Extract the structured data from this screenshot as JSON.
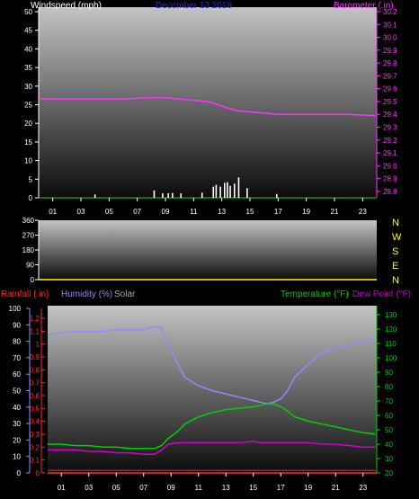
{
  "colors": {
    "background": "#000000",
    "axis": "#ffffff",
    "date": "#2a2acc",
    "barometer": "#ff33ff",
    "windspeed": "#ffffff",
    "winddir_axis": "#ffff00",
    "rainfall": "#ff2a2a",
    "humidity": "#8c8cff",
    "solar": "#aaaaaa",
    "temperature": "#00d000",
    "dewpoint": "#d000d0"
  },
  "header": {
    "windspeed_label": "Windspeed (mph)",
    "date": "December 13 2019",
    "barometer_label": "Barometer (.in)"
  },
  "lower_header": {
    "rainfall_label": "Rainfall (.in)",
    "humidity_label": "Humidity (%)",
    "solar_label": "Solar",
    "temperature_label": "Temperature (°F)",
    "dewpoint_label": "Dew Point (°F)"
  },
  "compass": [
    "N",
    "W",
    "S",
    "E",
    "N"
  ],
  "chart_data": [
    {
      "type": "line",
      "x": [
        0,
        2,
        4,
        6,
        8,
        9,
        10,
        12,
        14,
        16,
        17,
        18,
        20,
        22,
        23.9
      ],
      "series": [
        {
          "name": "Windspeed (mph)",
          "type": "bar",
          "x": [
            4,
            8.2,
            8.8,
            9.2,
            9.5,
            10.1,
            11.6,
            12.4,
            12.6,
            12.9,
            13.2,
            13.4,
            13.6,
            13.9,
            14.2,
            14.8,
            16.9
          ],
          "values": [
            0.9,
            2,
            1.2,
            1.2,
            1.3,
            1.2,
            1.4,
            3,
            3.5,
            3,
            4,
            4.2,
            3.2,
            3.8,
            5.5,
            2.6,
            1
          ]
        },
        {
          "name": "Barometer (.in)",
          "values": [
            29.52,
            29.52,
            29.52,
            29.52,
            29.53,
            29.53,
            29.52,
            29.5,
            29.43,
            29.41,
            29.4,
            29.4,
            29.4,
            29.4,
            29.39
          ]
        }
      ],
      "xticks": [
        "01",
        "03",
        "05",
        "07",
        "09",
        "11",
        "13",
        "15",
        "17",
        "19",
        "21",
        "23"
      ],
      "y_left": {
        "ticks": [
          "0",
          "5",
          "10",
          "15",
          "20",
          "25",
          "30",
          "35",
          "40",
          "45",
          "50"
        ],
        "range": [
          0,
          50
        ]
      },
      "y_right": {
        "ticks": [
          "28.8",
          "28.9",
          "29.0",
          "29.1",
          "29.2",
          "29.3",
          "29.4",
          "29.5",
          "29.6",
          "29.7",
          "29.8",
          "29.9",
          "30.0",
          "30.1",
          "30.2"
        ],
        "range": [
          28.75,
          30.2
        ]
      }
    },
    {
      "type": "scatter",
      "series": [
        {
          "name": "Wind Direction",
          "values": []
        }
      ],
      "y_left": {
        "ticks": [
          "0",
          "90",
          "180",
          "270",
          "360"
        ],
        "range": [
          0,
          360
        ]
      }
    },
    {
      "type": "line",
      "x": [
        0,
        1,
        2,
        3,
        4,
        5,
        6,
        7,
        7.8,
        8.3,
        8.8,
        9.5,
        10,
        11,
        12,
        13,
        14,
        15,
        15.5,
        16,
        16.5,
        17,
        17.5,
        18,
        19,
        20,
        21,
        22,
        23,
        23.9
      ],
      "series": [
        {
          "name": "Rainfall (.in)",
          "values": [
            0.02,
            0.02,
            0.02,
            0.02,
            0.02,
            0.02,
            0.02,
            0.02,
            0.02,
            0.02,
            0.02,
            0.02,
            0.02,
            0.02,
            0.02,
            0.02,
            0.02,
            0.02,
            0.02,
            0.02,
            0.02,
            0.02,
            0.02,
            0.02,
            0.02,
            0.02,
            0.02,
            0.02,
            0.02,
            0.02
          ]
        },
        {
          "name": "Humidity (%)",
          "values": [
            84,
            85,
            86,
            86,
            86,
            87,
            87,
            87,
            89,
            88,
            78,
            66,
            58,
            53,
            50,
            48,
            46,
            44,
            43,
            42,
            43,
            45,
            50,
            58,
            66,
            73,
            76,
            78,
            80,
            81
          ]
        },
        {
          "name": "Temperature (°F)",
          "values": [
            40,
            40,
            39,
            39,
            38,
            38,
            37,
            37,
            37,
            39,
            44,
            49,
            54,
            59,
            62,
            64,
            65,
            66,
            67,
            68,
            68,
            66,
            63,
            59,
            56,
            54,
            52,
            50,
            48,
            47
          ]
        },
        {
          "name": "Dew Point (°F)",
          "values": [
            36,
            36,
            36,
            35,
            35,
            34,
            34,
            33,
            33,
            36,
            40,
            41,
            41,
            41,
            41,
            41,
            41,
            42,
            41,
            41,
            41,
            41,
            41,
            41,
            41,
            40,
            40,
            39,
            38,
            38
          ]
        }
      ],
      "xticks": [
        "01",
        "03",
        "05",
        "07",
        "09",
        "11",
        "13",
        "15",
        "17",
        "19",
        "21",
        "23"
      ],
      "y_left_rain": {
        "ticks": [
          "0",
          "0.1",
          "0.2",
          "0.3",
          "0.4",
          "0.5",
          "0.6",
          "0.7",
          "0.8",
          "0.9",
          "1",
          "1.1",
          "1.2"
        ],
        "range": [
          0,
          1.2
        ]
      },
      "y_left_humidity": {
        "ticks": [
          "0",
          "10",
          "20",
          "30",
          "40",
          "50",
          "60",
          "70",
          "80",
          "90",
          "100"
        ],
        "range": [
          0,
          100
        ]
      },
      "y_right": {
        "ticks": [
          "20",
          "30",
          "40",
          "50",
          "60",
          "70",
          "80",
          "90",
          "100",
          "110",
          "120",
          "130"
        ],
        "range": [
          20,
          135
        ]
      }
    }
  ]
}
